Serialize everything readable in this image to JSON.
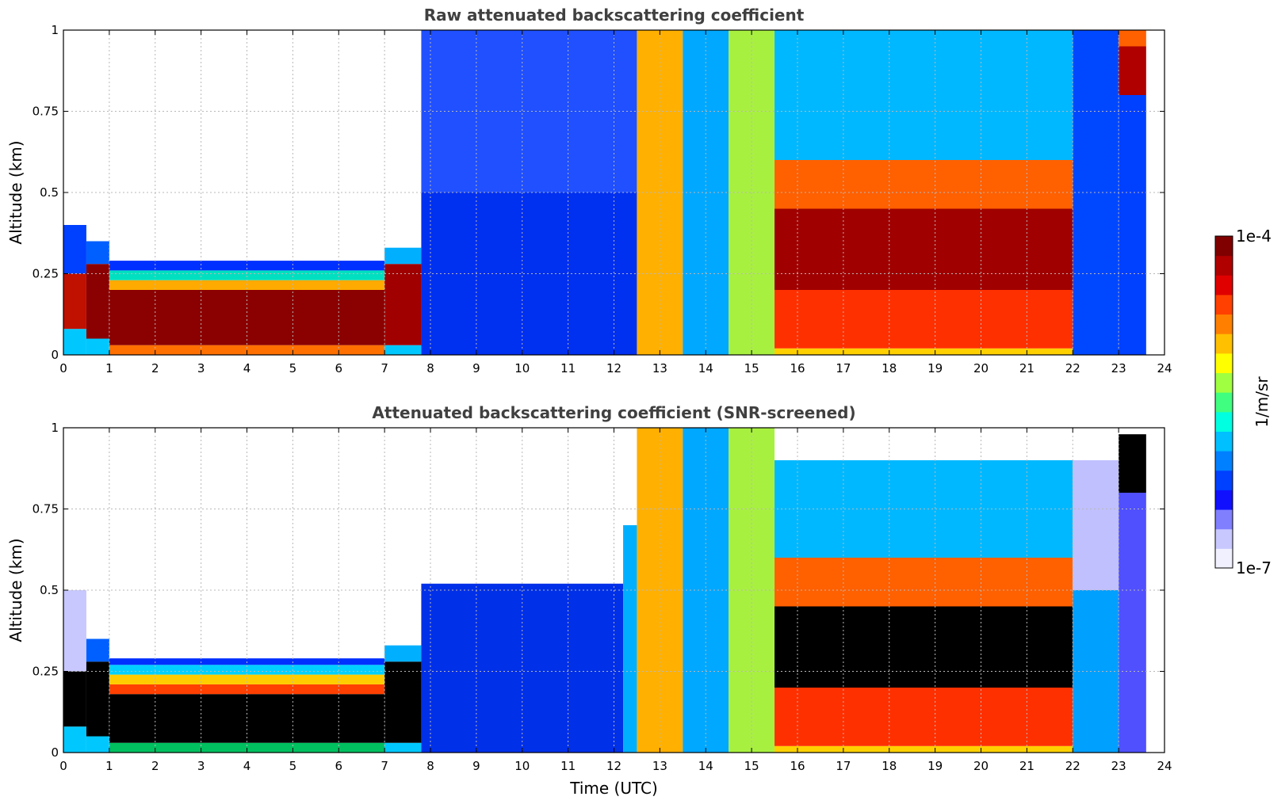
{
  "chart_data": [
    {
      "type": "heatmap",
      "title": "Raw attenuated backscattering coefficient",
      "xlabel": "",
      "ylabel": "Altitude (km)",
      "xlim": [
        0,
        24
      ],
      "ylim": [
        0,
        1
      ],
      "xticks": [
        "0",
        "1",
        "2",
        "3",
        "4",
        "5",
        "6",
        "7",
        "8",
        "9",
        "10",
        "11",
        "12",
        "13",
        "14",
        "15",
        "16",
        "17",
        "18",
        "19",
        "20",
        "21",
        "22",
        "23",
        "24"
      ],
      "yticks": [
        "0",
        "0.25",
        "0.5",
        "0.75",
        "1"
      ],
      "grid": true,
      "segments": [
        {
          "t0": 0.0,
          "t1": 0.5,
          "layers": [
            {
              "z0": 0.0,
              "z1": 0.08,
              "color": "#00c8ff"
            },
            {
              "z0": 0.08,
              "z1": 0.25,
              "color": "#c01000"
            },
            {
              "z0": 0.25,
              "z1": 0.4,
              "color": "#0040ff"
            }
          ]
        },
        {
          "t0": 0.5,
          "t1": 1.0,
          "layers": [
            {
              "z0": 0.0,
              "z1": 0.05,
              "color": "#00c8ff"
            },
            {
              "z0": 0.05,
              "z1": 0.28,
              "color": "#8b0000"
            },
            {
              "z0": 0.28,
              "z1": 0.35,
              "color": "#0060ff"
            }
          ]
        },
        {
          "t0": 1.0,
          "t1": 7.0,
          "layers": [
            {
              "z0": 0.0,
              "z1": 0.03,
              "color": "#ff7000"
            },
            {
              "z0": 0.03,
              "z1": 0.2,
              "color": "#8b0000"
            },
            {
              "z0": 0.2,
              "z1": 0.23,
              "color": "#ffaa00"
            },
            {
              "z0": 0.23,
              "z1": 0.26,
              "color": "#00e0c0"
            },
            {
              "z0": 0.26,
              "z1": 0.29,
              "color": "#0030ff"
            }
          ]
        },
        {
          "t0": 7.0,
          "t1": 7.8,
          "layers": [
            {
              "z0": 0.0,
              "z1": 0.03,
              "color": "#00c8ff"
            },
            {
              "z0": 0.03,
              "z1": 0.28,
              "color": "#a00000"
            },
            {
              "z0": 0.28,
              "z1": 0.33,
              "color": "#00b0ff"
            }
          ]
        },
        {
          "t0": 7.8,
          "t1": 12.5,
          "layers": [
            {
              "z0": 0.0,
              "z1": 0.5,
              "color": "#0030f0"
            },
            {
              "z0": 0.5,
              "z1": 1.0,
              "color": "#2050ff"
            }
          ]
        },
        {
          "t0": 12.5,
          "t1": 13.5,
          "layers": [
            {
              "z0": 0.0,
              "z1": 1.0,
              "color": "#ffb000"
            }
          ]
        },
        {
          "t0": 13.5,
          "t1": 14.5,
          "layers": [
            {
              "z0": 0.0,
              "z1": 1.0,
              "color": "#00a8ff"
            }
          ]
        },
        {
          "t0": 14.5,
          "t1": 15.5,
          "layers": [
            {
              "z0": 0.0,
              "z1": 1.0,
              "color": "#a8f040"
            }
          ]
        },
        {
          "t0": 15.5,
          "t1": 22.0,
          "layers": [
            {
              "z0": 0.0,
              "z1": 0.02,
              "color": "#ffd000"
            },
            {
              "z0": 0.02,
              "z1": 0.2,
              "color": "#ff3000"
            },
            {
              "z0": 0.2,
              "z1": 0.45,
              "color": "#a00000"
            },
            {
              "z0": 0.45,
              "z1": 0.6,
              "color": "#ff6000"
            },
            {
              "z0": 0.6,
              "z1": 1.0,
              "color": "#00b8ff"
            }
          ]
        },
        {
          "t0": 22.0,
          "t1": 23.0,
          "layers": [
            {
              "z0": 0.0,
              "z1": 1.0,
              "color": "#0048ff"
            }
          ]
        },
        {
          "t0": 23.0,
          "t1": 23.6,
          "layers": [
            {
              "z0": 0.0,
              "z1": 0.8,
              "color": "#0040ff"
            },
            {
              "z0": 0.8,
              "z1": 0.95,
              "color": "#b00000"
            },
            {
              "z0": 0.95,
              "z1": 1.0,
              "color": "#ff6000"
            }
          ]
        }
      ]
    },
    {
      "type": "heatmap",
      "title": "Attenuated backscattering coefficient (SNR-screened)",
      "xlabel": "Time (UTC)",
      "ylabel": "Altitude (km)",
      "xlim": [
        0,
        24
      ],
      "ylim": [
        0,
        1
      ],
      "xticks": [
        "0",
        "1",
        "2",
        "3",
        "4",
        "5",
        "6",
        "7",
        "8",
        "9",
        "10",
        "11",
        "12",
        "13",
        "14",
        "15",
        "16",
        "17",
        "18",
        "19",
        "20",
        "21",
        "22",
        "23",
        "24"
      ],
      "yticks": [
        "0",
        "0.25",
        "0.5",
        "0.75",
        "1"
      ],
      "grid": true,
      "segments": [
        {
          "t0": 0.0,
          "t1": 0.5,
          "layers": [
            {
              "z0": 0.0,
              "z1": 0.08,
              "color": "#00c8ff"
            },
            {
              "z0": 0.08,
              "z1": 0.25,
              "color": "#000000"
            },
            {
              "z0": 0.25,
              "z1": 0.5,
              "color": "#c8c8ff"
            }
          ]
        },
        {
          "t0": 0.5,
          "t1": 1.0,
          "layers": [
            {
              "z0": 0.0,
              "z1": 0.05,
              "color": "#00c8ff"
            },
            {
              "z0": 0.05,
              "z1": 0.28,
              "color": "#000000"
            },
            {
              "z0": 0.28,
              "z1": 0.35,
              "color": "#0060ff"
            }
          ]
        },
        {
          "t0": 1.0,
          "t1": 7.0,
          "layers": [
            {
              "z0": 0.0,
              "z1": 0.03,
              "color": "#00c060"
            },
            {
              "z0": 0.03,
              "z1": 0.18,
              "color": "#000000"
            },
            {
              "z0": 0.18,
              "z1": 0.21,
              "color": "#ff4000"
            },
            {
              "z0": 0.21,
              "z1": 0.24,
              "color": "#ffcc00"
            },
            {
              "z0": 0.24,
              "z1": 0.27,
              "color": "#00d0ff"
            },
            {
              "z0": 0.27,
              "z1": 0.29,
              "color": "#0030ff"
            }
          ]
        },
        {
          "t0": 7.0,
          "t1": 7.8,
          "layers": [
            {
              "z0": 0.0,
              "z1": 0.03,
              "color": "#00c8ff"
            },
            {
              "z0": 0.03,
              "z1": 0.28,
              "color": "#000000"
            },
            {
              "z0": 0.28,
              "z1": 0.33,
              "color": "#00b0ff"
            }
          ]
        },
        {
          "t0": 7.8,
          "t1": 12.2,
          "layers": [
            {
              "z0": 0.0,
              "z1": 0.52,
              "color": "#0030e8"
            }
          ]
        },
        {
          "t0": 12.2,
          "t1": 12.5,
          "layers": [
            {
              "z0": 0.0,
              "z1": 0.7,
              "color": "#00b0ff"
            }
          ]
        },
        {
          "t0": 12.5,
          "t1": 13.5,
          "layers": [
            {
              "z0": 0.0,
              "z1": 1.0,
              "color": "#ffb000"
            }
          ]
        },
        {
          "t0": 13.5,
          "t1": 14.5,
          "layers": [
            {
              "z0": 0.0,
              "z1": 1.0,
              "color": "#00a8ff"
            }
          ]
        },
        {
          "t0": 14.5,
          "t1": 15.5,
          "layers": [
            {
              "z0": 0.0,
              "z1": 1.0,
              "color": "#a8f040"
            }
          ]
        },
        {
          "t0": 15.5,
          "t1": 22.0,
          "layers": [
            {
              "z0": 0.0,
              "z1": 0.02,
              "color": "#ffd000"
            },
            {
              "z0": 0.02,
              "z1": 0.2,
              "color": "#ff3000"
            },
            {
              "z0": 0.2,
              "z1": 0.45,
              "color": "#000000"
            },
            {
              "z0": 0.45,
              "z1": 0.6,
              "color": "#ff6000"
            },
            {
              "z0": 0.6,
              "z1": 0.9,
              "color": "#00b8ff"
            }
          ]
        },
        {
          "t0": 22.0,
          "t1": 23.0,
          "layers": [
            {
              "z0": 0.0,
              "z1": 0.5,
              "color": "#00a0ff"
            },
            {
              "z0": 0.5,
              "z1": 0.9,
              "color": "#c0c0ff"
            }
          ]
        },
        {
          "t0": 23.0,
          "t1": 23.6,
          "layers": [
            {
              "z0": 0.0,
              "z1": 0.8,
              "color": "#5050ff"
            },
            {
              "z0": 0.8,
              "z1": 0.98,
              "color": "#000000"
            }
          ]
        }
      ]
    }
  ],
  "colorbar": {
    "label": "1/m/sr",
    "max_label": "1e-4",
    "min_label": "1e-7",
    "colors": [
      "#f0f0ff",
      "#c8c8ff",
      "#8080ff",
      "#1010ff",
      "#0040ff",
      "#0080ff",
      "#00c0ff",
      "#00ffe0",
      "#40ff80",
      "#a0ff40",
      "#ffff00",
      "#ffc000",
      "#ff8000",
      "#ff4000",
      "#e00000",
      "#b00000",
      "#800000"
    ]
  }
}
